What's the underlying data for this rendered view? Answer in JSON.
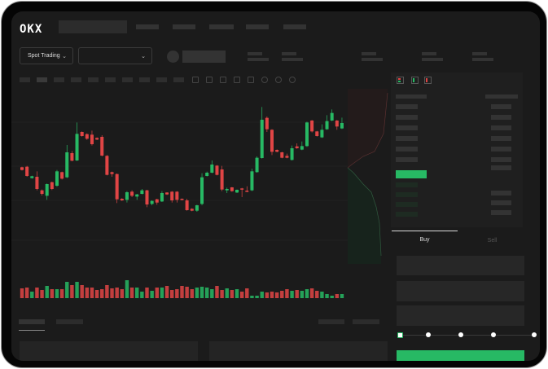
{
  "header": {
    "logo": "OKX"
  },
  "market": {
    "mode_label": "Spot Trading"
  },
  "trade": {
    "buy_tab": "Buy",
    "sell_tab": "Sell",
    "slider_percent": 0
  },
  "colors": {
    "up": "#27b964",
    "down": "#e04545",
    "background": "#1b1b1b",
    "panel": "#1f1f1f"
  },
  "chart_data": {
    "type": "candlestick",
    "candles": [
      [
        550,
        552,
        538,
        540
      ],
      [
        552,
        555,
        515,
        518
      ],
      [
        510,
        519,
        508,
        517
      ],
      [
        515,
        535,
        465,
        470
      ],
      [
        465,
        468,
        446,
        452
      ],
      [
        445,
        490,
        430,
        488
      ],
      [
        495,
        497,
        466,
        470
      ],
      [
        482,
        540,
        478,
        535
      ],
      [
        532,
        534,
        505,
        508
      ],
      [
        513,
        632,
        510,
        605
      ],
      [
        602,
        610,
        572,
        574
      ],
      [
        575,
        715,
        573,
        673
      ],
      [
        680,
        682,
        663,
        665
      ],
      [
        672,
        675,
        651,
        655
      ],
      [
        670,
        685,
        630,
        635
      ],
      [
        658,
        660,
        650,
        652
      ],
      [
        662,
        668,
        590,
        593
      ],
      [
        592,
        595,
        520,
        522
      ],
      [
        532,
        534,
        515,
        525
      ],
      [
        525,
        527,
        418,
        432
      ],
      [
        434,
        436,
        426,
        428
      ],
      [
        430,
        462,
        420,
        458
      ],
      [
        460,
        465,
        440,
        445
      ],
      [
        442,
        452,
        430,
        450
      ],
      [
        452,
        470,
        450,
        465
      ],
      [
        465,
        467,
        403,
        413
      ],
      [
        415,
        428,
        410,
        426
      ],
      [
        432,
        434,
        412,
        420
      ],
      [
        424,
        462,
        422,
        455
      ],
      [
        457,
        458,
        448,
        450
      ],
      [
        460,
        462,
        420,
        428
      ],
      [
        460,
        462,
        420,
        430
      ],
      [
        434,
        435,
        428,
        430
      ],
      [
        428,
        434,
        390,
        392
      ],
      [
        397,
        399,
        388,
        390
      ],
      [
        390,
        412,
        386,
        410
      ],
      [
        415,
        528,
        410,
        513
      ],
      [
        518,
        534,
        516,
        530
      ],
      [
        530,
        575,
        528,
        560
      ],
      [
        556,
        558,
        520,
        522
      ],
      [
        542,
        555,
        462,
        468
      ],
      [
        465,
        475,
        455,
        470
      ],
      [
        476,
        477,
        460,
        462
      ],
      [
        457,
        468,
        455,
        467
      ],
      [
        472,
        474,
        440,
        470
      ],
      [
        464,
        480,
        458,
        460
      ],
      [
        465,
        545,
        462,
        535
      ],
      [
        532,
        590,
        530,
        585
      ],
      [
        584,
        772,
        582,
        725
      ],
      [
        732,
        737,
        680,
        690
      ],
      [
        688,
        690,
        595,
        607
      ],
      [
        614,
        616,
        605,
        607
      ],
      [
        605,
        607,
        583,
        585
      ],
      [
        592,
        600,
        583,
        585
      ],
      [
        577,
        630,
        575,
        620
      ],
      [
        627,
        638,
        618,
        620
      ],
      [
        615,
        645,
        613,
        628
      ],
      [
        628,
        718,
        625,
        715
      ],
      [
        722,
        724,
        678,
        682
      ],
      [
        682,
        684,
        663,
        665
      ],
      [
        660,
        708,
        658,
        688
      ],
      [
        690,
        742,
        688,
        720
      ],
      [
        722,
        763,
        720,
        750
      ],
      [
        722,
        724,
        688,
        700
      ],
      [
        693,
        733,
        691,
        713
      ]
    ],
    "volumes": [
      12,
      13,
      8,
      13,
      10,
      15,
      11,
      11,
      11,
      20,
      16,
      20,
      16,
      13,
      13,
      10,
      11,
      16,
      12,
      13,
      11,
      22,
      13,
      13,
      8,
      13,
      9,
      13,
      13,
      15,
      10,
      11,
      15,
      14,
      11,
      13,
      14,
      13,
      11,
      15,
      10,
      12,
      10,
      11,
      8,
      12,
      3,
      3,
      8,
      7,
      8,
      7,
      9,
      11,
      9,
      10,
      9,
      11,
      12,
      9,
      8,
      5,
      3,
      5,
      5
    ]
  }
}
